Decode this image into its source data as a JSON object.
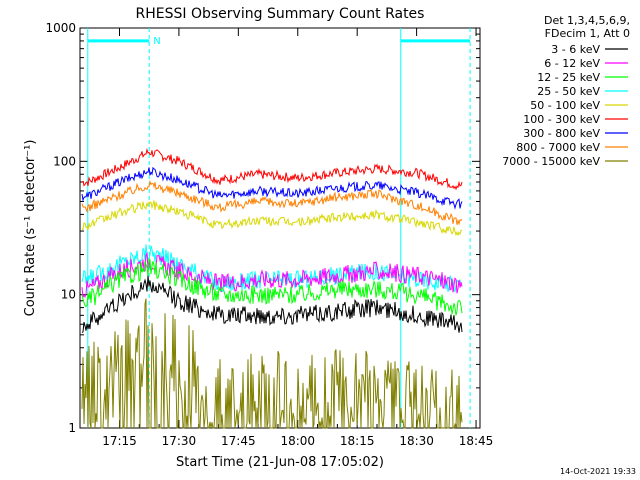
{
  "chart_data": {
    "type": "line",
    "title": "RHESSI Observing Summary Count Rates",
    "xlabel": "Start Time (21-Jun-08 17:05:02)",
    "ylabel": "Count Rate (s⁻¹ detector⁻¹)",
    "y_scale": "log",
    "ylim": [
      1,
      1000
    ],
    "xlim": [
      "17:05:02",
      "18:46:00"
    ],
    "x_ticks": [
      "17:15",
      "17:30",
      "17:45",
      "18:00",
      "18:15",
      "18:30",
      "18:45"
    ],
    "y_ticks": [
      "1",
      "10",
      "100",
      "1000"
    ],
    "legend": {
      "position": "right",
      "header": [
        "Det 1,3,4,5,6,9,",
        "FDecim 1, Att 0"
      ],
      "entries": [
        {
          "label": "3 - 6 keV",
          "color": "#000000"
        },
        {
          "label": "6 - 12 keV",
          "color": "#ff00ff"
        },
        {
          "label": "12 - 25 keV",
          "color": "#00ff00"
        },
        {
          "label": "25 - 50 keV",
          "color": "#00ffff"
        },
        {
          "label": "50 - 100 keV",
          "color": "#d8d800"
        },
        {
          "label": "100 - 300 keV",
          "color": "#ff0000"
        },
        {
          "label": "300 - 800 keV",
          "color": "#0000ff"
        },
        {
          "label": "800 - 7000 keV",
          "color": "#ff8000"
        },
        {
          "label": "7000 - 15000 keV",
          "color": "#808000"
        }
      ]
    },
    "annotations": {
      "night_marker": "N",
      "timestamp": "14-Oct-2021 19:33",
      "cyan_lines_times": [
        "17:07:00",
        "17:22:30",
        "18:26:00",
        "18:43:30"
      ]
    },
    "series": [
      {
        "name": "100 - 300 keV",
        "color": "#ff0000",
        "x_min": [
          2,
          10,
          17.5,
          25,
          35,
          45,
          55,
          65,
          75,
          85,
          95,
          100
        ],
        "values": [
          70,
          90,
          118,
          100,
          72,
          80,
          75,
          82,
          88,
          82,
          66,
          65
        ]
      },
      {
        "name": "300 - 800 keV",
        "color": "#0000ff",
        "x_min": [
          2,
          10,
          17.5,
          25,
          35,
          45,
          55,
          65,
          75,
          85,
          95,
          100
        ],
        "values": [
          55,
          70,
          85,
          72,
          55,
          60,
          57,
          63,
          66,
          58,
          48,
          47
        ]
      },
      {
        "name": "800 - 7000 keV",
        "color": "#ff8000",
        "x_min": [
          2,
          10,
          17.5,
          25,
          35,
          45,
          55,
          65,
          75,
          85,
          95,
          100
        ],
        "values": [
          45,
          56,
          67,
          58,
          45,
          50,
          48,
          54,
          57,
          47,
          36,
          35
        ]
      },
      {
        "name": "50 - 100 keV",
        "color": "#d8d800",
        "x_min": [
          2,
          10,
          17.5,
          25,
          35,
          45,
          55,
          65,
          75,
          85,
          95,
          100
        ],
        "values": [
          33,
          41,
          48,
          42,
          33,
          36,
          35,
          38,
          40,
          35,
          30,
          30
        ]
      },
      {
        "name": "25 - 50 keV",
        "color": "#00ffff",
        "x_min": [
          2,
          10,
          17.5,
          25,
          35,
          45,
          55,
          65,
          75,
          85,
          95,
          100
        ],
        "values": [
          13,
          17,
          21,
          17,
          12,
          13,
          13,
          14,
          15,
          13,
          12,
          11
        ]
      },
      {
        "name": "6 - 12 keV",
        "color": "#ff00ff",
        "x_min": [
          2,
          10,
          17.5,
          25,
          35,
          45,
          55,
          65,
          75,
          85,
          95,
          100
        ],
        "values": [
          11,
          15,
          18,
          15,
          12,
          13,
          13,
          14,
          15,
          14,
          12,
          12
        ]
      },
      {
        "name": "12 - 25 keV",
        "color": "#00ff00",
        "x_min": [
          2,
          10,
          17.5,
          25,
          35,
          45,
          55,
          65,
          75,
          85,
          95,
          100
        ],
        "values": [
          9,
          13,
          16,
          13,
          10,
          10,
          10,
          11,
          11,
          10,
          8,
          7.5
        ]
      },
      {
        "name": "3 - 6 keV",
        "color": "#000000",
        "x_min": [
          2,
          10,
          17.5,
          25,
          35,
          45,
          55,
          65,
          75,
          85,
          95,
          100
        ],
        "values": [
          6,
          9,
          12,
          9,
          7,
          7,
          7,
          7.5,
          8,
          7,
          6,
          5.5
        ]
      },
      {
        "name": "7000 - 15000 keV",
        "color": "#808000",
        "x_min": [
          2,
          10,
          17.5,
          25,
          35,
          45,
          55,
          65,
          75,
          85,
          95,
          100
        ],
        "values": [
          2,
          2.8,
          4.5,
          3.2,
          1.5,
          1.8,
          1.6,
          1.8,
          2,
          1.6,
          1.3,
          1.2
        ]
      }
    ]
  }
}
